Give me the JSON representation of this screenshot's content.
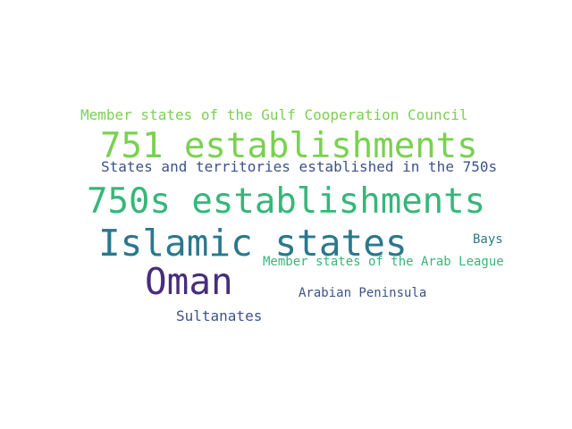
{
  "cloud": {
    "words": [
      {
        "text": "Member states of the Gulf Cooperation Council",
        "color": "#7ad151"
      },
      {
        "text": "751 establishments",
        "color": "#7ad151"
      },
      {
        "text": "States and territories established in the 750s",
        "color": "#3b528b"
      },
      {
        "text": "750s establishments",
        "color": "#35b779"
      },
      {
        "text": "Islamic states",
        "color": "#2a788e"
      },
      {
        "text": "Bays",
        "color": "#2a788e"
      },
      {
        "text": "Member states of the Arab League",
        "color": "#35b779"
      },
      {
        "text": "Oman",
        "color": "#472d7b"
      },
      {
        "text": "Arabian Peninsula",
        "color": "#3b528b"
      },
      {
        "text": "Sultanates",
        "color": "#3b528b"
      }
    ]
  }
}
